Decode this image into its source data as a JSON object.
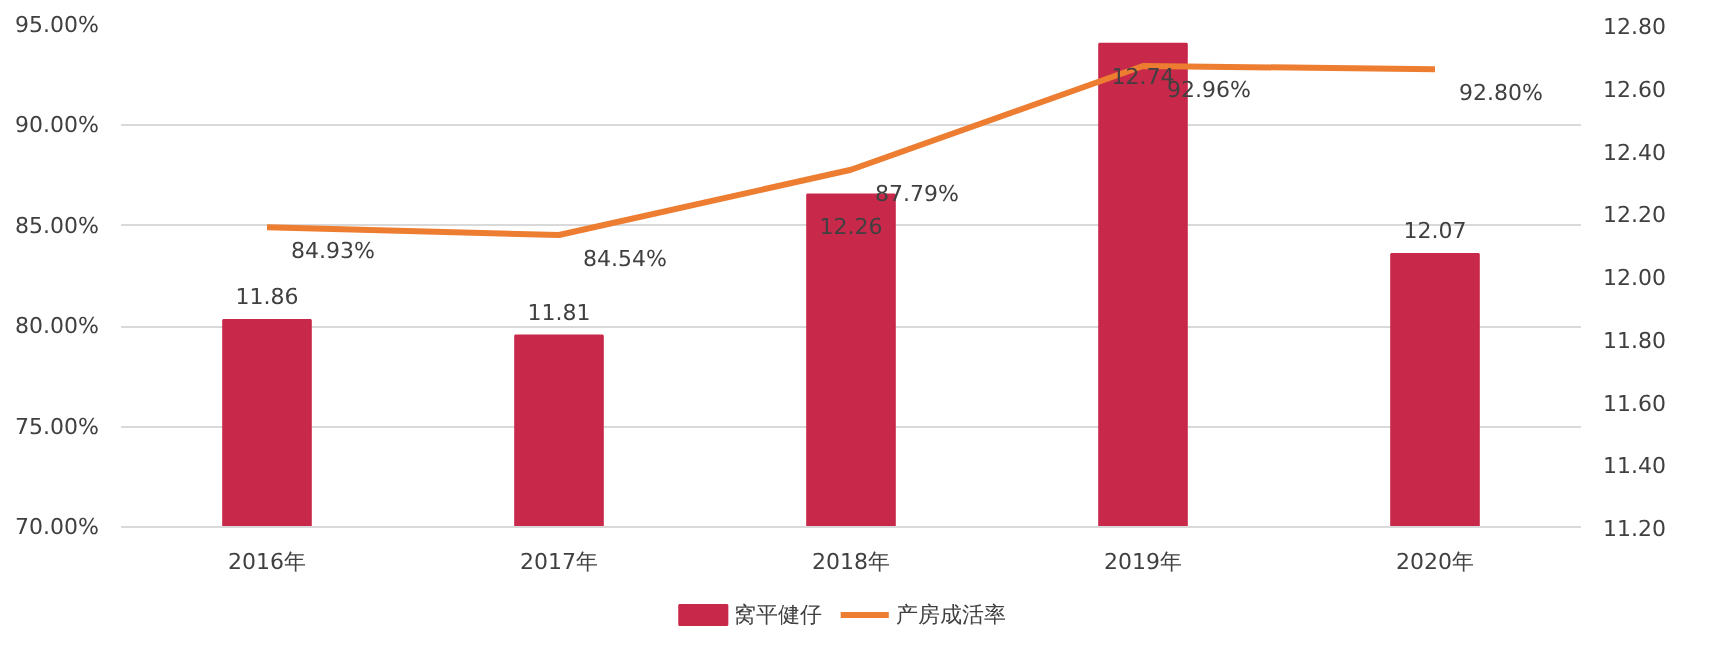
{
  "chart_data": {
    "type": "bar",
    "categories": [
      "2016年",
      "2017年",
      "2018年",
      "2019年",
      "2020年"
    ],
    "series": [
      {
        "name": "窝平健仔",
        "axis": "y2",
        "color": "#c8284a",
        "values": [
          11.86,
          11.81,
          12.26,
          12.74,
          12.07
        ],
        "value_labels": [
          "11.86",
          "11.81",
          "12.26",
          "12.74",
          "12.07"
        ]
      },
      {
        "name": "产房成活率",
        "type": "line",
        "color": "#ed7d31",
        "values": [
          84.93,
          84.54,
          87.79,
          92.96,
          92.8
        ],
        "value_labels": [
          "84.93%",
          "84.54%",
          "87.79%",
          "92.96%",
          "92.80%"
        ]
      }
    ],
    "ylim": [
      70,
      95
    ],
    "yticks": [
      {
        "value": 70,
        "label": "70.00%"
      },
      {
        "value": 75,
        "label": "75.00%"
      },
      {
        "value": 80,
        "label": "80.00%"
      },
      {
        "value": 85,
        "label": "85.00%"
      },
      {
        "value": 90,
        "label": "90.00%"
      },
      {
        "value": 95,
        "label": "95.00%"
      }
    ],
    "y2lim": [
      11.2,
      12.8
    ],
    "y2ticks": [
      {
        "value": 11.2,
        "label": "11.20"
      },
      {
        "value": 11.4,
        "label": "11.40"
      },
      {
        "value": 11.6,
        "label": "11.60"
      },
      {
        "value": 11.8,
        "label": "11.80"
      },
      {
        "value": 12.0,
        "label": "12.00"
      },
      {
        "value": 12.2,
        "label": "12.20"
      },
      {
        "value": 12.4,
        "label": "12.40"
      },
      {
        "value": 12.6,
        "label": "12.60"
      },
      {
        "value": 12.8,
        "label": "12.80"
      }
    ],
    "grid": "y",
    "legend": "bottom",
    "marker": "none",
    "line_style": "solid"
  }
}
